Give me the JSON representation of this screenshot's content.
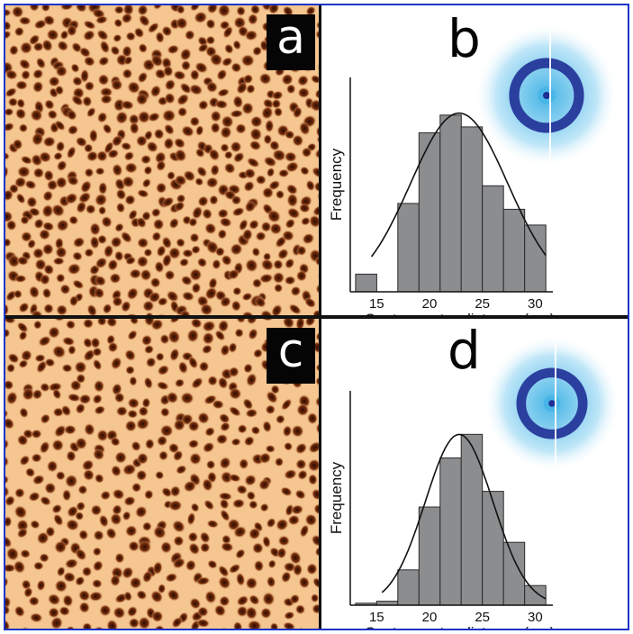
{
  "figure": {
    "frame_color": "#1c34c8",
    "panels": {
      "a": {
        "label": "a",
        "kind": "micrograph",
        "colors": [
          "#f5c690",
          "#7a2e0a",
          "#2a0c02"
        ]
      },
      "b": {
        "label": "b"
      },
      "c": {
        "label": "c",
        "kind": "micrograph",
        "colors": [
          "#f5c690",
          "#7a2e0a",
          "#2a0c02"
        ]
      },
      "d": {
        "label": "d"
      }
    },
    "insets": {
      "b": {
        "kind": "diffraction-pattern",
        "colors": [
          "#bfe6f8",
          "#47b5e6",
          "#1f2f95"
        ]
      },
      "d": {
        "kind": "diffraction-pattern",
        "colors": [
          "#bfe6f8",
          "#47b5e6",
          "#1f2f95"
        ]
      }
    }
  },
  "chart_data": [
    {
      "panel": "b",
      "type": "bar",
      "xlabel": "Center-center distance (nm)",
      "ylabel": "Frequency",
      "xlim": [
        12.5,
        31.5
      ],
      "ylim": [
        0,
        1.0
      ],
      "xticks": [
        15,
        20,
        25,
        30
      ],
      "bin_width": 2,
      "bins": [
        {
          "x": 14,
          "value": 0.09
        },
        {
          "x": 18,
          "value": 0.45
        },
        {
          "x": 20,
          "value": 0.81
        },
        {
          "x": 22,
          "value": 0.9
        },
        {
          "x": 24,
          "value": 0.84
        },
        {
          "x": 26,
          "value": 0.54
        },
        {
          "x": 28,
          "value": 0.42
        },
        {
          "x": 30,
          "value": 0.34
        }
      ],
      "fit_curve": {
        "type": "gaussian",
        "mean": 22.8,
        "sigma": 4.6,
        "peak": 0.91,
        "x_range": [
          14.5,
          31
        ]
      },
      "bar_color": "#8b8d8f"
    },
    {
      "panel": "d",
      "type": "bar",
      "xlabel": "Center-center distance (nm)",
      "ylabel": "Frequency",
      "xlim": [
        12.5,
        31.5
      ],
      "ylim": [
        0,
        1.0
      ],
      "xticks": [
        15,
        20,
        25,
        30
      ],
      "bin_width": 2,
      "bins": [
        {
          "x": 14,
          "value": 0.01
        },
        {
          "x": 16,
          "value": 0.02
        },
        {
          "x": 18,
          "value": 0.18
        },
        {
          "x": 20,
          "value": 0.5
        },
        {
          "x": 22,
          "value": 0.75
        },
        {
          "x": 24,
          "value": 0.87
        },
        {
          "x": 26,
          "value": 0.58
        },
        {
          "x": 28,
          "value": 0.32
        },
        {
          "x": 30,
          "value": 0.1
        }
      ],
      "fit_curve": {
        "type": "gaussian",
        "mean": 22.8,
        "sigma": 3.2,
        "peak": 0.87,
        "x_range": [
          15.5,
          31
        ]
      },
      "bar_color": "#8b8d8f"
    }
  ]
}
